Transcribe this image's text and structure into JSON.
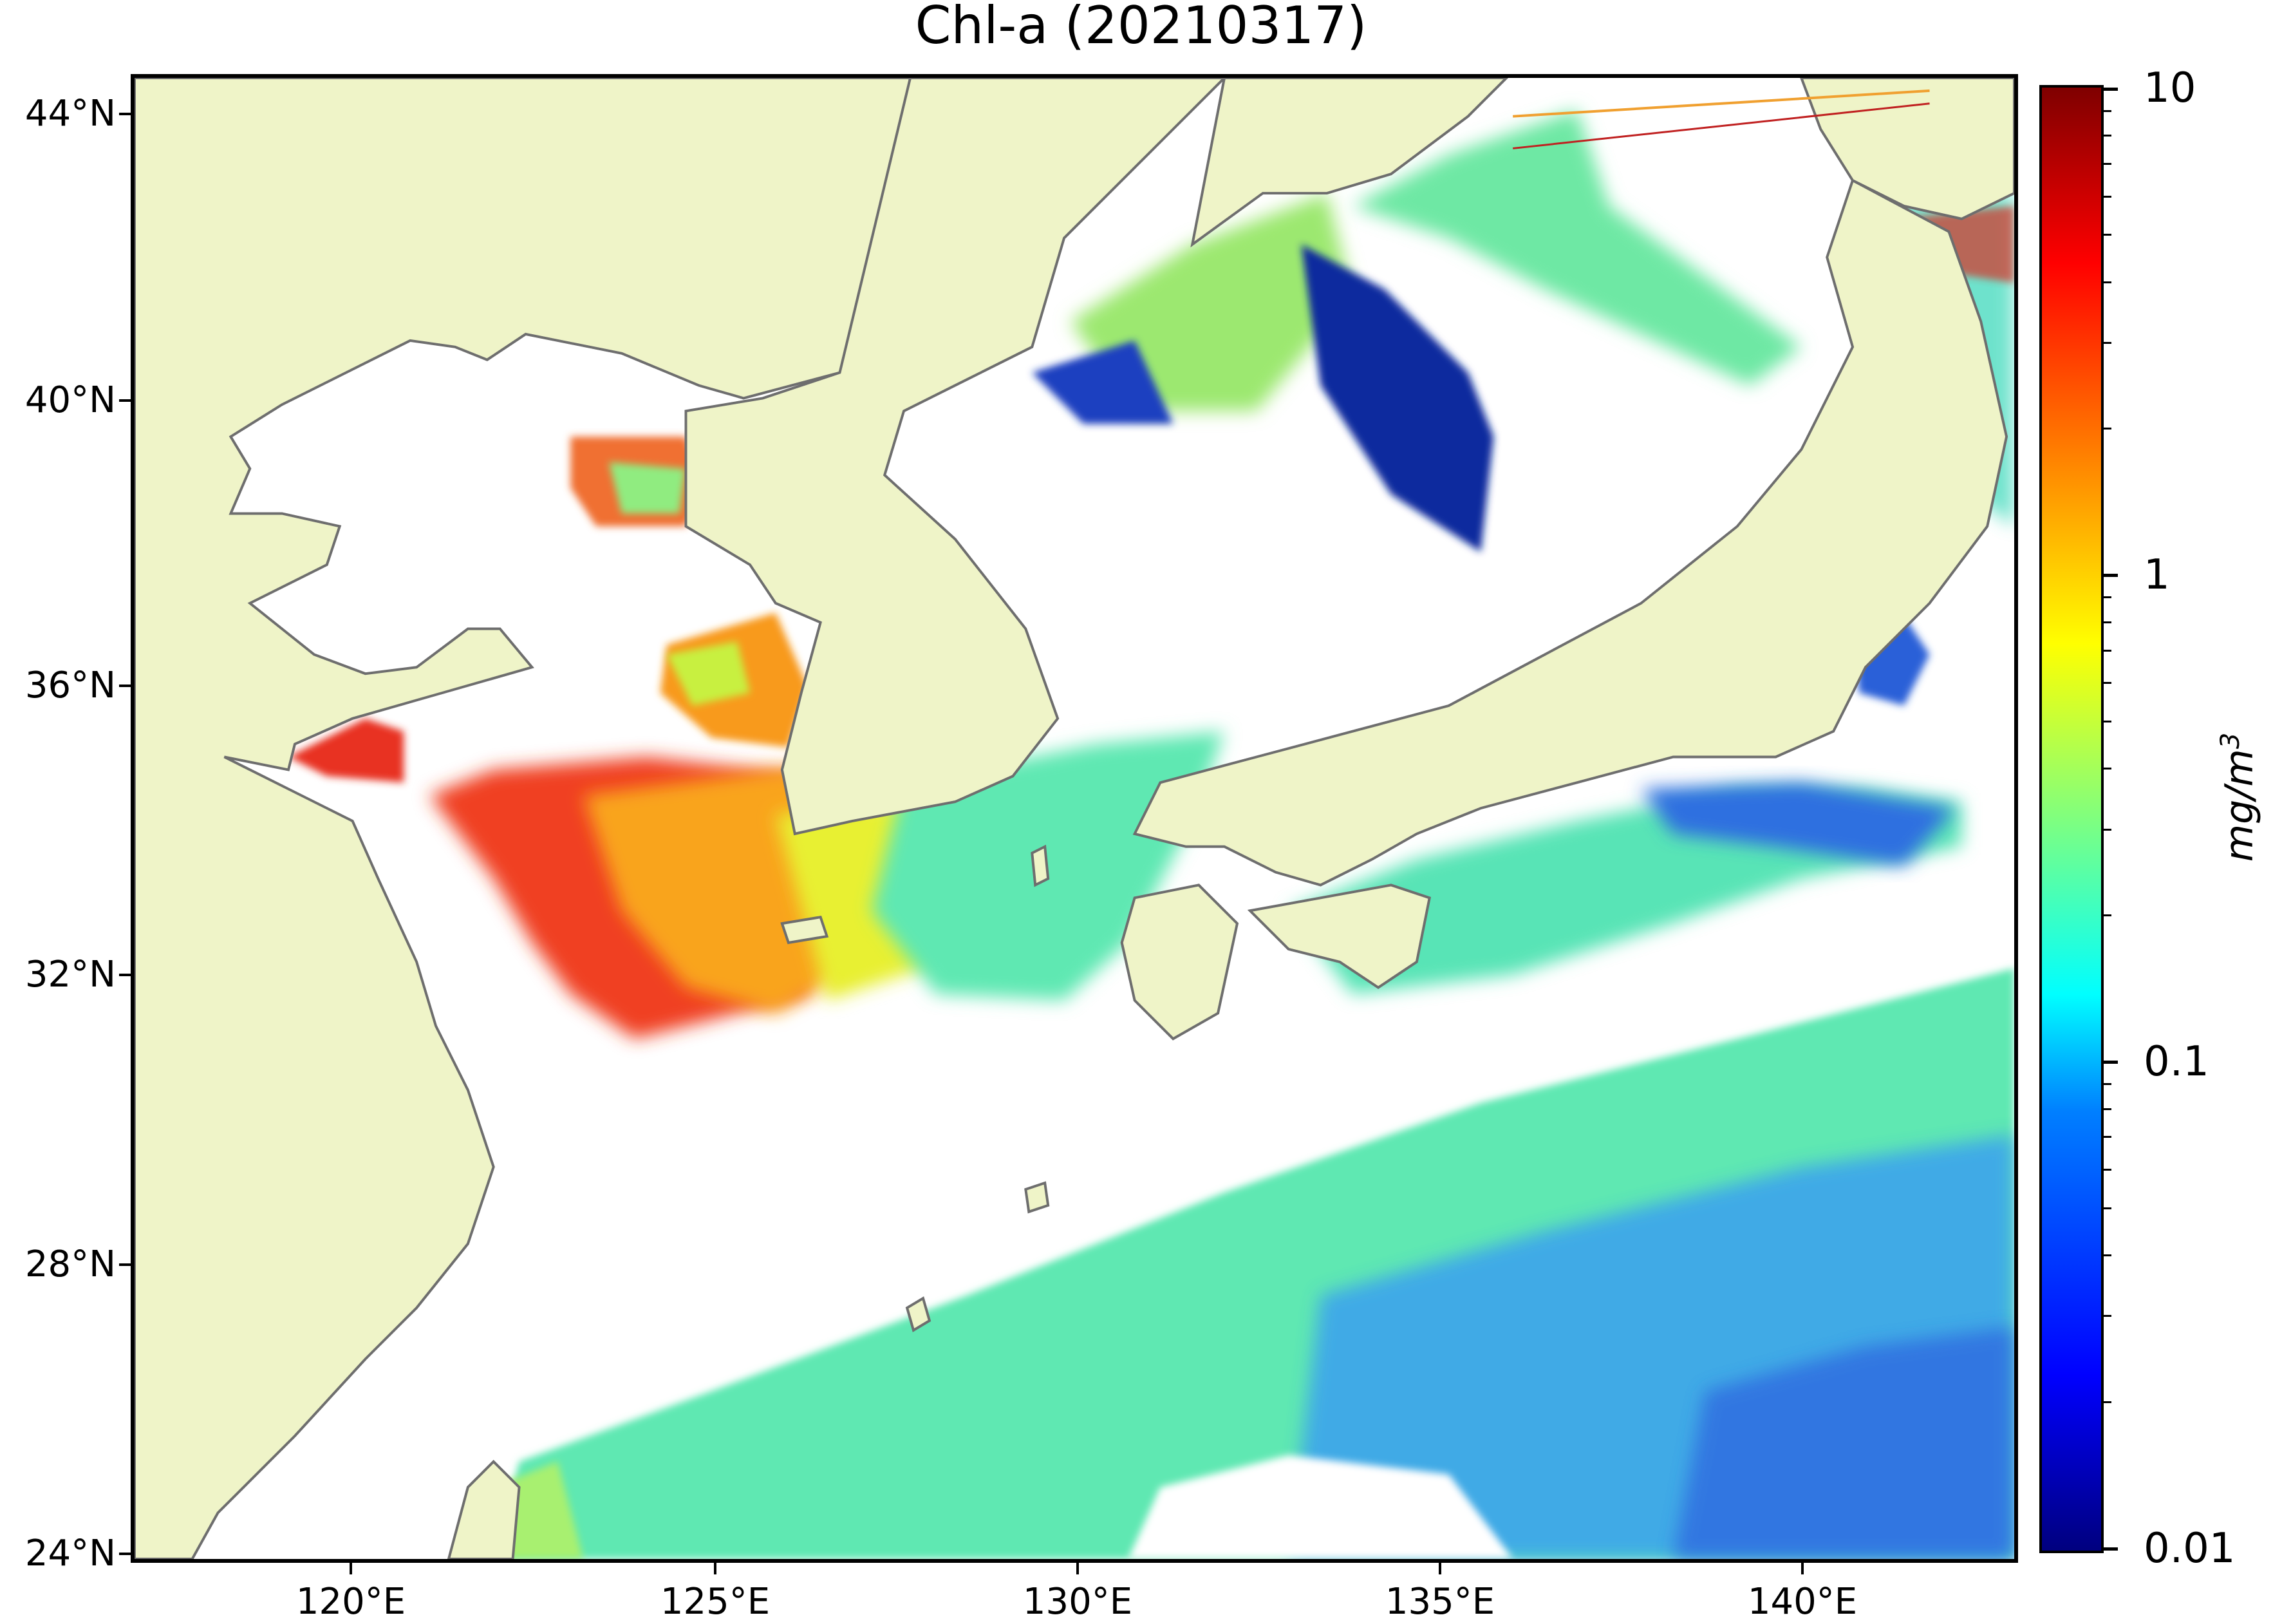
{
  "title": "Chl-a (20210317)",
  "axes": {
    "lat_ticks": [
      "44°N",
      "40°N",
      "36°N",
      "32°N",
      "28°N",
      "24°N"
    ],
    "lon_ticks": [
      "120°E",
      "125°E",
      "130°E",
      "135°E",
      "140°E"
    ],
    "lat_range": [
      24,
      44.5
    ],
    "lon_range": [
      117,
      143
    ]
  },
  "colorbar": {
    "scale": "log",
    "ticks": [
      "10",
      "1",
      "0.1",
      "0.01"
    ],
    "range": [
      0.01,
      10
    ],
    "unit_prefix": "mg/m",
    "unit_exp": "3",
    "colormap": "jet"
  },
  "colors": {
    "land": "#eff4c8",
    "coastline": "#6e6e6e",
    "no_data": "#ffffff"
  }
}
